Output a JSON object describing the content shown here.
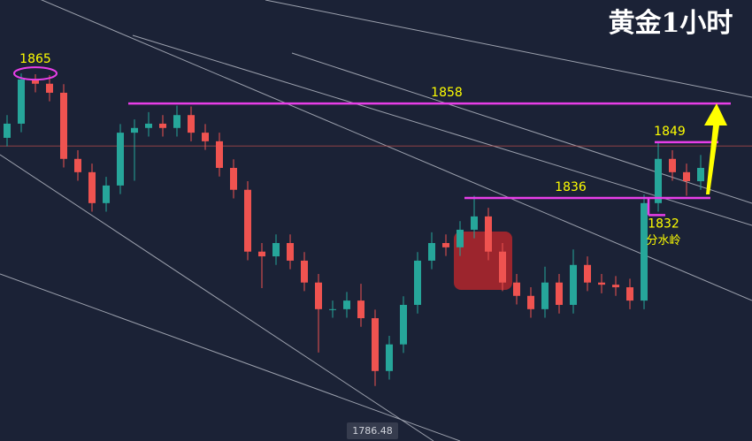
{
  "chart_data": {
    "type": "candlestick",
    "title": "黄金1小时",
    "ylim": [
      1779.4,
      1882.1
    ],
    "up_color": "#26a69a",
    "down_color": "#ef5350",
    "open": [
      1850,
      1853.3,
      1863.6,
      1862.6,
      1860.5,
      1845.1,
      1842.0,
      1834.8,
      1838.9,
      1851.2,
      1852.3,
      1853.3,
      1852.3,
      1855.3,
      1851.2,
      1849.2,
      1843.0,
      1837.9,
      1823.5,
      1822.4,
      1825.5,
      1821.4,
      1816.3,
      1810.1,
      1810.1,
      1812.1,
      1808.0,
      1795.7,
      1801.9,
      1811.1,
      1821.4,
      1825.5,
      1824.5,
      1828.6,
      1831.7,
      1823.5,
      1816.3,
      1813.2,
      1810.1,
      1816.3,
      1811.1,
      1820.4,
      1816.3,
      1815.8,
      1815.2,
      1812.1,
      1834.8,
      1845.1,
      1842.0,
      1839.9
    ],
    "high": [
      1855.3,
      1865,
      1864.8,
      1864.6,
      1862.5,
      1847.1,
      1844,
      1840.9,
      1853.2,
      1854.3,
      1856,
      1855.3,
      1857.5,
      1857.3,
      1853.2,
      1851.2,
      1845,
      1839.9,
      1825.5,
      1827.5,
      1827.5,
      1823.4,
      1818.3,
      1812.1,
      1814.1,
      1816,
      1810,
      1803.9,
      1813.1,
      1823.4,
      1828,
      1827.5,
      1830.6,
      1836.5,
      1833.7,
      1825.5,
      1818.3,
      1815.2,
      1820,
      1818.3,
      1824,
      1822.4,
      1818.3,
      1817.8,
      1817.2,
      1836.8,
      1849,
      1847.1,
      1844,
      1846
    ],
    "low": [
      1848,
      1851.3,
      1860.6,
      1858.5,
      1843.1,
      1840,
      1832.8,
      1832.8,
      1836.9,
      1840,
      1850.3,
      1850.3,
      1850.3,
      1849.2,
      1847.2,
      1841,
      1835.9,
      1821.5,
      1815,
      1820.4,
      1819.4,
      1814.3,
      1800,
      1808.1,
      1808.1,
      1806,
      1792.2,
      1793.7,
      1799.9,
      1809.1,
      1819.4,
      1822.5,
      1822.5,
      1826.6,
      1821.5,
      1814.3,
      1811.2,
      1808.1,
      1808.1,
      1809.1,
      1809.1,
      1814.3,
      1813.8,
      1813.2,
      1810.1,
      1810.1,
      1832.8,
      1840,
      1836.5,
      1837.9
    ],
    "close": [
      1853.3,
      1863.6,
      1862.6,
      1860.5,
      1845.1,
      1842.0,
      1834.8,
      1838.9,
      1851.2,
      1852.3,
      1853.3,
      1852.3,
      1855.3,
      1851.2,
      1849.2,
      1843.0,
      1837.9,
      1823.5,
      1822.4,
      1825.5,
      1821.4,
      1816.3,
      1810.1,
      1810.1,
      1812.1,
      1808.0,
      1795.7,
      1801.9,
      1811.1,
      1821.4,
      1825.5,
      1824.5,
      1828.6,
      1831.7,
      1823.5,
      1816.3,
      1813.2,
      1810.1,
      1816.3,
      1811.1,
      1820.4,
      1816.3,
      1815.8,
      1815.2,
      1812.1,
      1834.8,
      1845.1,
      1842.0,
      1839.9,
      1843.0
    ],
    "levels": [
      {
        "value": 1858,
        "color": "#e83ee8"
      },
      {
        "value": 1849,
        "color": "#e83ee8"
      },
      {
        "value": 1836,
        "color": "#e83ee8"
      },
      {
        "value": 1832,
        "color": "#e83ee8"
      }
    ],
    "peak_label": 1865,
    "note": "分水岭",
    "price_tag": 1786.48,
    "current_price": 1848.1
  }
}
